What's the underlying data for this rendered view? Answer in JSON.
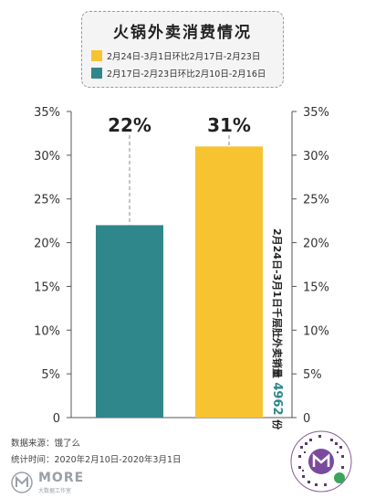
{
  "title": "火锅外卖消费情况",
  "legend": [
    {
      "label": "2月24日-3月1日环比2月17日-2月23日",
      "color": "#f7c331"
    },
    {
      "label": "2月17日-2月23日环比2月10日-2月16日",
      "color": "#2f878c"
    }
  ],
  "annotation": {
    "prefix": "2月24日-3月1日千层肚外卖销量",
    "number": "4962",
    "suffix": "份",
    "number_color": "#2f878c"
  },
  "footer": {
    "source": "数据来源：饿了么",
    "period": "统计时间：2020年2月10日-2020年3月1日"
  },
  "brand": {
    "name": "MORE",
    "sub": "大数据工作室"
  },
  "chart_data": {
    "type": "bar",
    "categories": [
      "2月17日-2月23日环比2月10日-2月16日",
      "2月24日-3月1日环比2月17日-2月23日"
    ],
    "values": [
      22,
      31
    ],
    "value_labels": [
      "22%",
      "31%"
    ],
    "colors": [
      "#2f878c",
      "#f7c331"
    ],
    "ylim": [
      0,
      35
    ],
    "yticks": [
      0,
      5,
      10,
      15,
      20,
      25,
      30,
      35
    ],
    "ytick_labels": [
      "0",
      "5%",
      "10%",
      "15%",
      "20%",
      "25%",
      "30%",
      "35%"
    ],
    "axes": "both-sides",
    "grid": false
  }
}
